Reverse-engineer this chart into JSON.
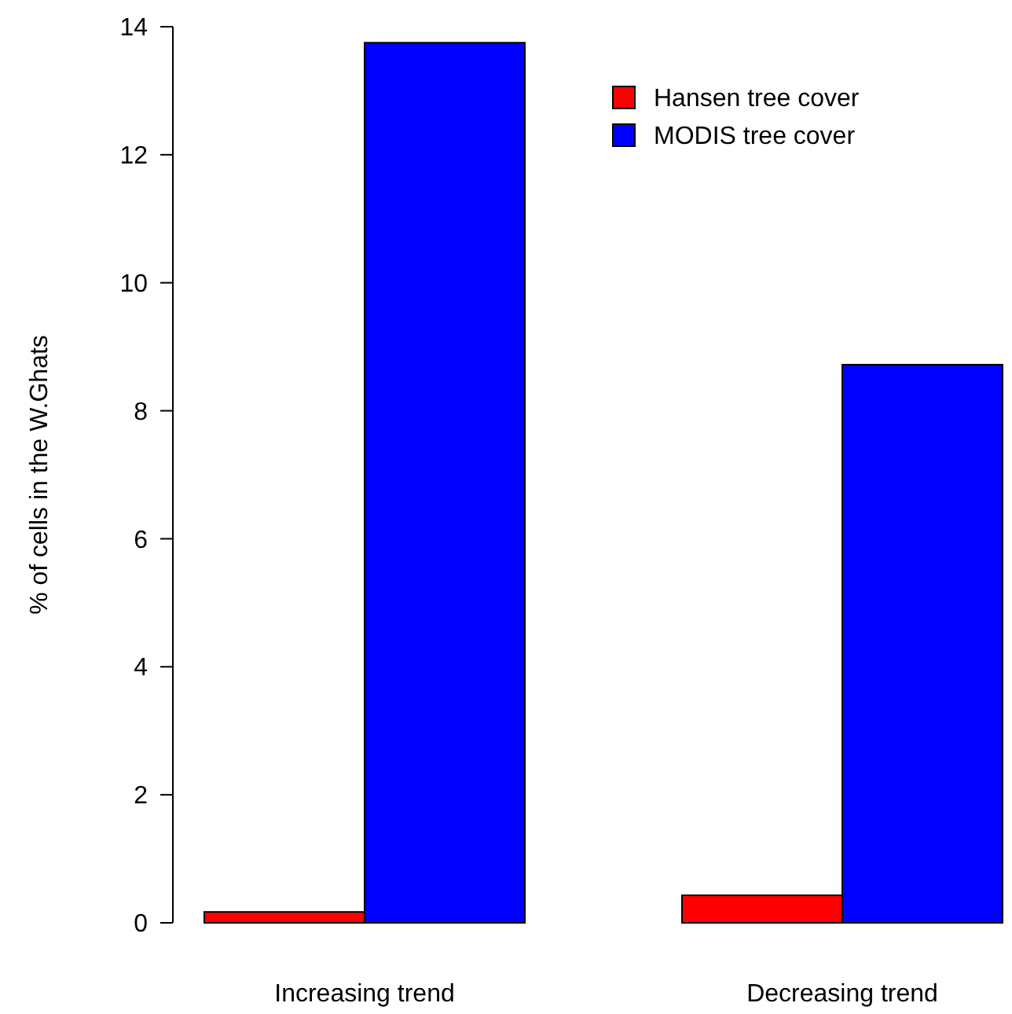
{
  "chart_data": {
    "type": "bar",
    "ylabel": "% of cells in the W.Ghats",
    "categories": [
      "Increasing trend",
      "Decreasing trend"
    ],
    "series": [
      {
        "name": "Hansen tree cover",
        "color": "#ff0000",
        "values": [
          0.17,
          0.43
        ]
      },
      {
        "name": "MODIS tree cover",
        "color": "#0000ff",
        "values": [
          13.75,
          8.72
        ]
      }
    ],
    "ylim": [
      0,
      14
    ],
    "yticks": [
      0,
      2,
      4,
      6,
      8,
      10,
      12,
      14
    ],
    "legend": "top right",
    "grid": false
  }
}
